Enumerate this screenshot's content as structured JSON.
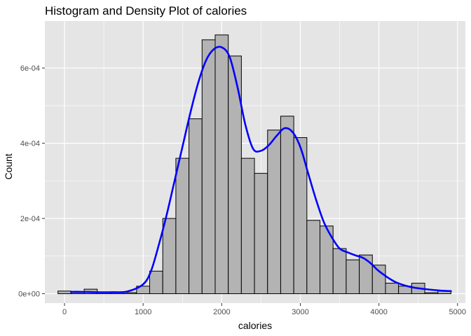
{
  "chart_data": {
    "type": "histogram-density",
    "title": "Histogram and Density Plot of calories",
    "xlabel": "calories",
    "ylabel": "Count",
    "xlim": [
      -250,
      5100
    ],
    "ylim": [
      -2.5e-05,
      0.000725
    ],
    "x_ticks": [
      0,
      1000,
      2000,
      3000,
      4000,
      5000
    ],
    "x_tick_labels": [
      "0",
      "1000",
      "2000",
      "3000",
      "4000",
      "5000"
    ],
    "y_ticks": [
      0,
      0.0002,
      0.0004,
      0.0006
    ],
    "y_tick_labels": [
      "0e+00",
      "2e-04",
      "4e-04",
      "6e-04"
    ],
    "grid": true,
    "colors": {
      "panel": "#e5e5e5",
      "grid": "#ffffff",
      "bar_fill": "#b3b3b3",
      "bar_stroke": "#000000",
      "density": "#0000ff"
    },
    "bins": {
      "centers": [
        0,
        166.7,
        333.3,
        500,
        666.7,
        833.3,
        1000,
        1166.7,
        1333.3,
        1500,
        1666.7,
        1833.3,
        2000,
        2166.7,
        2333.3,
        2500,
        2666.7,
        2833.3,
        3000,
        3166.7,
        3333.3,
        3500,
        3666.7,
        3833.3,
        4000,
        4166.7,
        4333.3,
        4500,
        4666.7,
        4833.3
      ],
      "width": 166.7,
      "values": [
        7e-06,
        3e-06,
        1.2e-05,
        4e-06,
        4e-06,
        3e-06,
        2e-05,
        6e-05,
        0.0002,
        0.00036,
        0.000465,
        0.000675,
        0.000688,
        0.000632,
        0.00036,
        0.00032,
        0.000435,
        0.000472,
        0.000415,
        0.000195,
        0.00018,
        0.00012,
        9e-05,
        0.000103,
        7.6e-05,
        2.8e-05,
        2e-05,
        2.8e-05,
        3e-06,
        7e-06
      ]
    },
    "density": {
      "x": [
        83,
        200,
        400,
        600,
        800,
        1000,
        1100,
        1200,
        1300,
        1400,
        1500,
        1600,
        1700,
        1800,
        1900,
        2000,
        2100,
        2200,
        2300,
        2400,
        2500,
        2600,
        2700,
        2800,
        2900,
        3000,
        3100,
        3200,
        3300,
        3400,
        3500,
        3600,
        3700,
        3800,
        3900,
        4000,
        4200,
        4400,
        4600,
        4800,
        4917
      ],
      "y": [
        5e-06,
        5e-06,
        4e-06,
        4e-06,
        6e-06,
        2.5e-05,
        6e-05,
        0.00013,
        0.00021,
        0.0003,
        0.00039,
        0.00048,
        0.00056,
        0.00062,
        0.00065,
        0.000655,
        0.00063,
        0.00055,
        0.00045,
        0.000385,
        0.00038,
        0.000395,
        0.00042,
        0.00044,
        0.00043,
        0.00039,
        0.00032,
        0.00025,
        0.00019,
        0.00015,
        0.00012,
        0.00011,
        0.000102,
        9.5e-05,
        8e-05,
        6e-05,
        3.2e-05,
        1.8e-05,
        1.2e-05,
        8e-06,
        7e-06
      ]
    }
  }
}
